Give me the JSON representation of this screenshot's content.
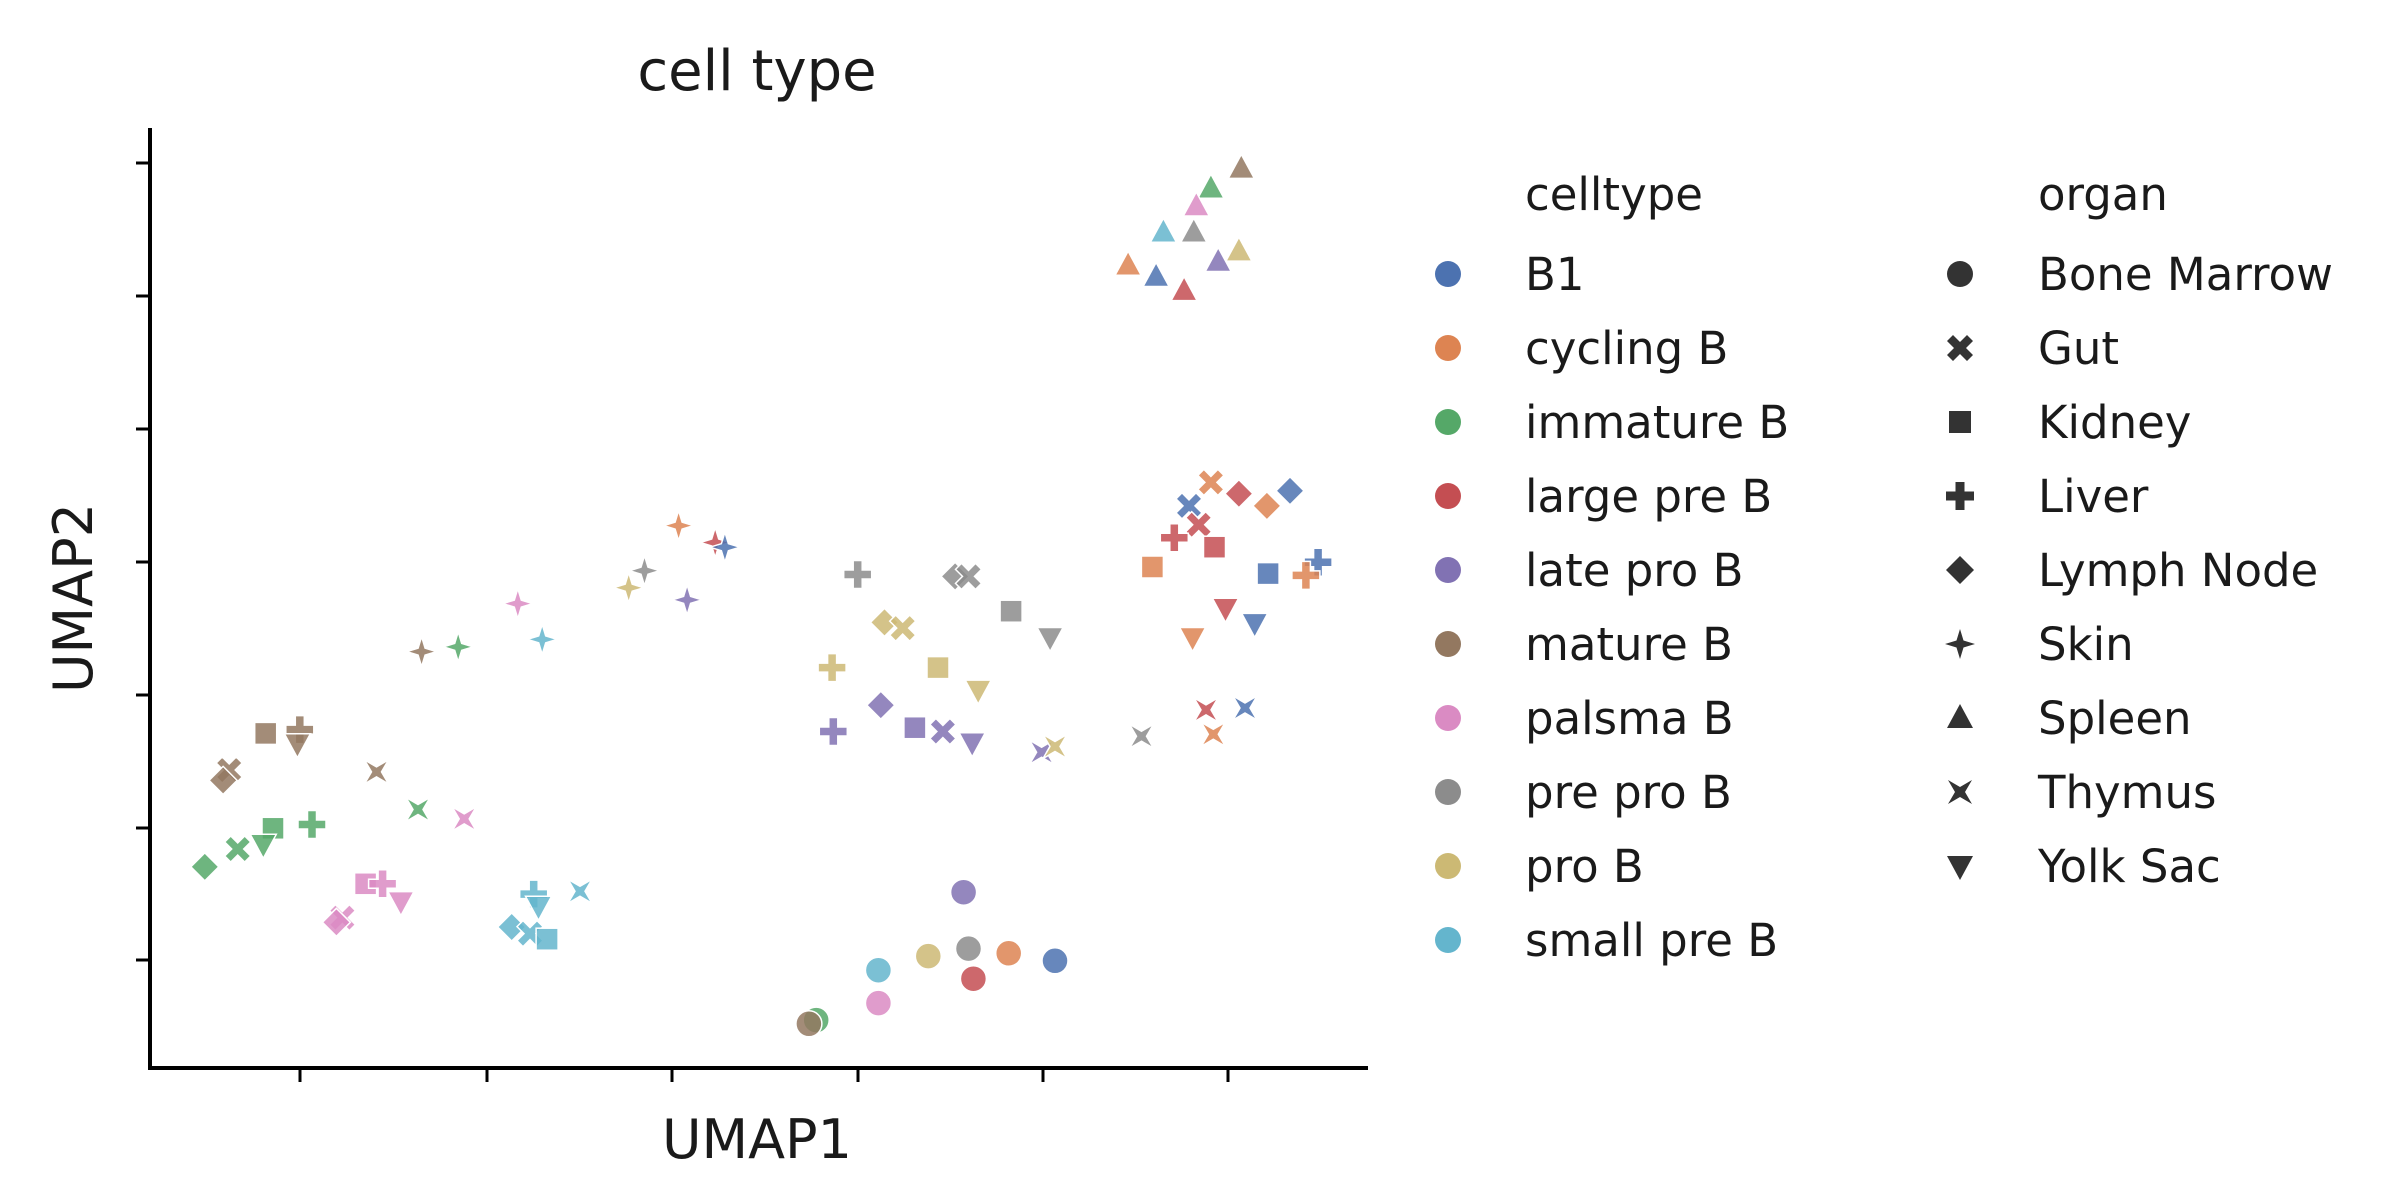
{
  "chart_data": {
    "type": "scatter",
    "title": "cell type",
    "xlabel": "UMAP1",
    "ylabel": "UMAP2",
    "xlim": [
      0,
      100
    ],
    "ylim": [
      0,
      100
    ],
    "grid": false,
    "legend_position": "right",
    "legend_hue_title": "celltype",
    "legend_style_title": "organ",
    "celltypes": [
      {
        "name": "B1",
        "color": "#4c72b0"
      },
      {
        "name": "cycling B",
        "color": "#dd8452"
      },
      {
        "name": "immature B",
        "color": "#55a868"
      },
      {
        "name": "large pre B",
        "color": "#c44e52"
      },
      {
        "name": "late pro B",
        "color": "#8172b3"
      },
      {
        "name": "mature B",
        "color": "#937860"
      },
      {
        "name": "palsma B",
        "color": "#da8bc3"
      },
      {
        "name": "pre pro B",
        "color": "#8c8c8c"
      },
      {
        "name": "pro B",
        "color": "#ccb974"
      },
      {
        "name": "small pre B",
        "color": "#64b5cd"
      }
    ],
    "organs": [
      {
        "name": "Bone Marrow",
        "marker": "circle"
      },
      {
        "name": "Gut",
        "marker": "x"
      },
      {
        "name": "Kidney",
        "marker": "square"
      },
      {
        "name": "Liver",
        "marker": "plus"
      },
      {
        "name": "Lymph Node",
        "marker": "diamond"
      },
      {
        "name": "Skin",
        "marker": "star4"
      },
      {
        "name": "Spleen",
        "marker": "triangle-up"
      },
      {
        "name": "Thymus",
        "marker": "star4-alt"
      },
      {
        "name": "Yolk Sac",
        "marker": "triangle-down"
      }
    ],
    "points": [
      {
        "celltype": "B1",
        "organ": "Bone Marrow",
        "x": 74.3,
        "y": 11.4
      },
      {
        "celltype": "cycling B",
        "organ": "Bone Marrow",
        "x": 70.5,
        "y": 12.2
      },
      {
        "celltype": "large pre B",
        "organ": "Bone Marrow",
        "x": 67.6,
        "y": 9.5
      },
      {
        "celltype": "late pro B",
        "organ": "Bone Marrow",
        "x": 66.8,
        "y": 18.7
      },
      {
        "celltype": "pre pro B",
        "organ": "Bone Marrow",
        "x": 67.2,
        "y": 12.7
      },
      {
        "celltype": "pro B",
        "organ": "Bone Marrow",
        "x": 63.9,
        "y": 11.9
      },
      {
        "celltype": "small pre B",
        "organ": "Bone Marrow",
        "x": 59.8,
        "y": 10.4
      },
      {
        "celltype": "palsma B",
        "organ": "Bone Marrow",
        "x": 59.8,
        "y": 6.9
      },
      {
        "celltype": "immature B",
        "organ": "Bone Marrow",
        "x": 54.7,
        "y": 5.1
      },
      {
        "celltype": "mature B",
        "organ": "Bone Marrow",
        "x": 54.1,
        "y": 4.7
      },
      {
        "celltype": "mature B",
        "organ": "Spleen",
        "x": 89.6,
        "y": 95.7
      },
      {
        "celltype": "immature B",
        "organ": "Spleen",
        "x": 87.1,
        "y": 93.6
      },
      {
        "celltype": "palsma B",
        "organ": "Spleen",
        "x": 85.9,
        "y": 91.7
      },
      {
        "celltype": "small pre B",
        "organ": "Spleen",
        "x": 83.2,
        "y": 88.9
      },
      {
        "celltype": "pre pro B",
        "organ": "Spleen",
        "x": 85.7,
        "y": 88.9
      },
      {
        "celltype": "pro B",
        "organ": "Spleen",
        "x": 89.4,
        "y": 86.9
      },
      {
        "celltype": "late pro B",
        "organ": "Spleen",
        "x": 87.7,
        "y": 85.8
      },
      {
        "celltype": "cycling B",
        "organ": "Spleen",
        "x": 80.3,
        "y": 85.4
      },
      {
        "celltype": "B1",
        "organ": "Spleen",
        "x": 82.6,
        "y": 84.2
      },
      {
        "celltype": "large pre B",
        "organ": "Spleen",
        "x": 84.9,
        "y": 82.7
      },
      {
        "celltype": "cycling B",
        "organ": "Gut",
        "x": 87.1,
        "y": 62.3
      },
      {
        "celltype": "B1",
        "organ": "Lymph Node",
        "x": 93.6,
        "y": 61.4
      },
      {
        "celltype": "large pre B",
        "organ": "Lymph Node",
        "x": 89.4,
        "y": 61.1
      },
      {
        "celltype": "cycling B",
        "organ": "Lymph Node",
        "x": 91.7,
        "y": 59.8
      },
      {
        "celltype": "B1",
        "organ": "Gut",
        "x": 85.3,
        "y": 59.8
      },
      {
        "celltype": "large pre B",
        "organ": "Gut",
        "x": 86.1,
        "y": 57.8
      },
      {
        "celltype": "large pre B",
        "organ": "Liver",
        "x": 84.1,
        "y": 56.4
      },
      {
        "celltype": "large pre B",
        "organ": "Kidney",
        "x": 87.4,
        "y": 55.4
      },
      {
        "celltype": "B1",
        "organ": "Liver",
        "x": 95.9,
        "y": 53.8
      },
      {
        "celltype": "cycling B",
        "organ": "Kidney",
        "x": 82.3,
        "y": 53.3
      },
      {
        "celltype": "B1",
        "organ": "Kidney",
        "x": 91.8,
        "y": 52.6
      },
      {
        "celltype": "cycling B",
        "organ": "Liver",
        "x": 94.9,
        "y": 52.4
      },
      {
        "celltype": "large pre B",
        "organ": "Yolk Sac",
        "x": 88.3,
        "y": 48.9
      },
      {
        "celltype": "B1",
        "organ": "Yolk Sac",
        "x": 90.7,
        "y": 47.3
      },
      {
        "celltype": "cycling B",
        "organ": "Yolk Sac",
        "x": 85.6,
        "y": 45.8
      },
      {
        "celltype": "large pre B",
        "organ": "Thymus",
        "x": 86.7,
        "y": 38.1
      },
      {
        "celltype": "B1",
        "organ": "Thymus",
        "x": 89.9,
        "y": 38.3
      },
      {
        "celltype": "cycling B",
        "organ": "Thymus",
        "x": 87.3,
        "y": 35.5
      },
      {
        "celltype": "pre pro B",
        "organ": "Thymus",
        "x": 81.4,
        "y": 35.3
      },
      {
        "celltype": "cycling B",
        "organ": "Skin",
        "x": 43.4,
        "y": 57.7
      },
      {
        "celltype": "large pre B",
        "organ": "Skin",
        "x": 46.4,
        "y": 55.9
      },
      {
        "celltype": "B1",
        "organ": "Skin",
        "x": 47.2,
        "y": 55.4
      },
      {
        "celltype": "pre pro B",
        "organ": "Skin",
        "x": 40.6,
        "y": 52.9
      },
      {
        "celltype": "pro B",
        "organ": "Skin",
        "x": 39.3,
        "y": 51.1
      },
      {
        "celltype": "late pro B",
        "organ": "Skin",
        "x": 44.1,
        "y": 49.8
      },
      {
        "celltype": "palsma B",
        "organ": "Skin",
        "x": 30.2,
        "y": 49.4
      },
      {
        "celltype": "small pre B",
        "organ": "Skin",
        "x": 32.2,
        "y": 45.6
      },
      {
        "celltype": "immature B",
        "organ": "Skin",
        "x": 25.3,
        "y": 44.8
      },
      {
        "celltype": "mature B",
        "organ": "Skin",
        "x": 22.3,
        "y": 44.3
      },
      {
        "celltype": "pre pro B",
        "organ": "Liver",
        "x": 58.1,
        "y": 52.5
      },
      {
        "celltype": "pre pro B",
        "organ": "Lymph Node",
        "x": 66.1,
        "y": 52.3
      },
      {
        "celltype": "pre pro B",
        "organ": "Gut",
        "x": 67.2,
        "y": 52.3
      },
      {
        "celltype": "pre pro B",
        "organ": "Kidney",
        "x": 70.7,
        "y": 48.6
      },
      {
        "celltype": "pre pro B",
        "organ": "Yolk Sac",
        "x": 73.9,
        "y": 45.8
      },
      {
        "celltype": "pro B",
        "organ": "Lymph Node",
        "x": 60.3,
        "y": 47.4
      },
      {
        "celltype": "pro B",
        "organ": "Gut",
        "x": 61.8,
        "y": 46.8
      },
      {
        "celltype": "pro B",
        "organ": "Liver",
        "x": 56.0,
        "y": 42.6
      },
      {
        "celltype": "pro B",
        "organ": "Kidney",
        "x": 64.7,
        "y": 42.6
      },
      {
        "celltype": "pro B",
        "organ": "Yolk Sac",
        "x": 68.0,
        "y": 40.2
      },
      {
        "celltype": "late pro B",
        "organ": "Lymph Node",
        "x": 60.0,
        "y": 38.6
      },
      {
        "celltype": "late pro B",
        "organ": "Liver",
        "x": 56.1,
        "y": 35.8
      },
      {
        "celltype": "late pro B",
        "organ": "Kidney",
        "x": 62.8,
        "y": 36.2
      },
      {
        "celltype": "late pro B",
        "organ": "Gut",
        "x": 65.1,
        "y": 35.8
      },
      {
        "celltype": "late pro B",
        "organ": "Yolk Sac",
        "x": 67.5,
        "y": 34.6
      },
      {
        "celltype": "late pro B",
        "organ": "Thymus",
        "x": 73.2,
        "y": 33.6
      },
      {
        "celltype": "pro B",
        "organ": "Thymus",
        "x": 74.3,
        "y": 34.2
      },
      {
        "celltype": "mature B",
        "organ": "Kidney",
        "x": 9.5,
        "y": 35.6
      },
      {
        "celltype": "mature B",
        "organ": "Liver",
        "x": 12.3,
        "y": 36.0
      },
      {
        "celltype": "mature B",
        "organ": "Yolk Sac",
        "x": 12.1,
        "y": 34.5
      },
      {
        "celltype": "mature B",
        "organ": "Gut",
        "x": 6.5,
        "y": 31.7
      },
      {
        "celltype": "mature B",
        "organ": "Lymph Node",
        "x": 6.0,
        "y": 30.6
      },
      {
        "celltype": "mature B",
        "organ": "Thymus",
        "x": 18.6,
        "y": 31.5
      },
      {
        "celltype": "immature B",
        "organ": "Thymus",
        "x": 22.0,
        "y": 27.5
      },
      {
        "celltype": "palsma B",
        "organ": "Thymus",
        "x": 25.8,
        "y": 26.5
      },
      {
        "celltype": "immature B",
        "organ": "Liver",
        "x": 13.3,
        "y": 25.9
      },
      {
        "celltype": "immature B",
        "organ": "Kidney",
        "x": 10.1,
        "y": 25.5
      },
      {
        "celltype": "immature B",
        "organ": "Yolk Sac",
        "x": 9.3,
        "y": 23.8
      },
      {
        "celltype": "immature B",
        "organ": "Gut",
        "x": 7.2,
        "y": 23.3
      },
      {
        "celltype": "immature B",
        "organ": "Lymph Node",
        "x": 4.5,
        "y": 21.4
      },
      {
        "celltype": "palsma B",
        "organ": "Kidney",
        "x": 17.7,
        "y": 19.6
      },
      {
        "celltype": "palsma B",
        "organ": "Liver",
        "x": 19.1,
        "y": 19.6
      },
      {
        "celltype": "palsma B",
        "organ": "Yolk Sac",
        "x": 20.6,
        "y": 17.7
      },
      {
        "celltype": "palsma B",
        "organ": "Gut",
        "x": 15.8,
        "y": 16.0
      },
      {
        "celltype": "palsma B",
        "organ": "Lymph Node",
        "x": 15.3,
        "y": 15.5
      },
      {
        "celltype": "small pre B",
        "organ": "Liver",
        "x": 31.5,
        "y": 18.5
      },
      {
        "celltype": "small pre B",
        "organ": "Thymus",
        "x": 35.3,
        "y": 18.8
      },
      {
        "celltype": "small pre B",
        "organ": "Yolk Sac",
        "x": 31.9,
        "y": 17.2
      },
      {
        "celltype": "small pre B",
        "organ": "Lymph Node",
        "x": 29.7,
        "y": 15.0
      },
      {
        "celltype": "small pre B",
        "organ": "Gut",
        "x": 31.2,
        "y": 14.3
      },
      {
        "celltype": "small pre B",
        "organ": "Kidney",
        "x": 32.6,
        "y": 13.7
      }
    ]
  }
}
